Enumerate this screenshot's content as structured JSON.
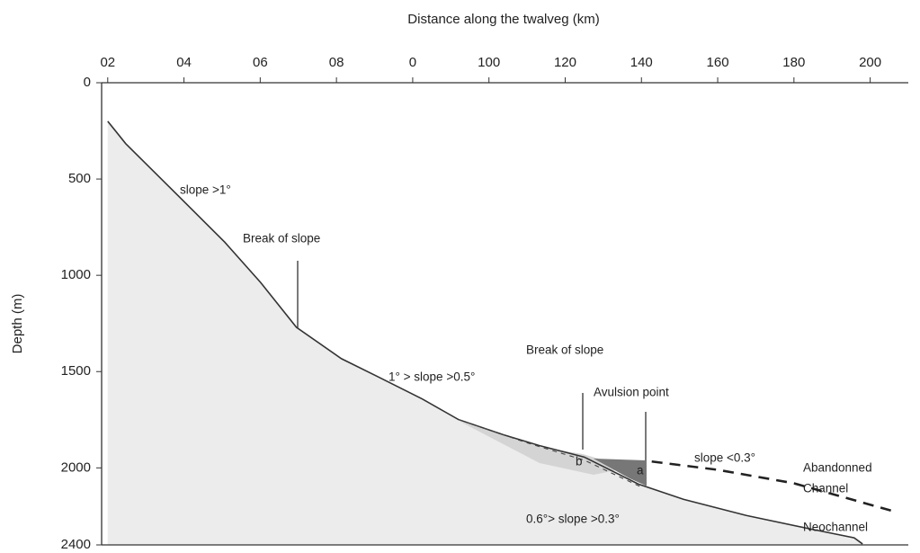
{
  "chart_data": {
    "type": "line",
    "title": "Distance along the twalveg (km)",
    "y_label": "Depth (m)",
    "xlim": [
      -1.6,
      210
    ],
    "ylim": [
      0,
      2400
    ],
    "y_inverted": true,
    "x_axis_position": "top",
    "xticks": [
      {
        "value": 0,
        "label": "02"
      },
      {
        "value": 20,
        "label": "04"
      },
      {
        "value": 40,
        "label": "06"
      },
      {
        "value": 60,
        "label": "08"
      },
      {
        "value": 80,
        "label": "0"
      },
      100,
      120,
      140,
      160,
      180,
      200
    ],
    "yticks": [
      0,
      500,
      1000,
      1500,
      2000,
      2400
    ],
    "series": [
      {
        "x": [
          0,
          4.7,
          18.9,
          30.7,
          40.1,
          49.5,
          61.3,
          70.8,
          82.5,
          92,
          103.8,
          113.2,
          125,
          139.2,
          151,
          167.5,
          184,
          195.8,
          198
        ],
        "values": [
          200,
          316,
          595,
          828,
          1037,
          1270,
          1433,
          1526,
          1642,
          1749,
          1828,
          1884,
          1944,
          2084,
          2163,
          2247,
          2316,
          2363,
          2395
        ],
        "color": "#333333",
        "style": "solid",
        "fill": "#ececec"
      },
      {
        "x": [
          92,
          110,
          125,
          140
        ],
        "values": [
          1749,
          1870,
          1960,
          2100
        ],
        "color": "#444444",
        "style": "dashed-fine"
      },
      {
        "x": [
          142.7,
          160,
          180,
          207
        ],
        "values": [
          1967,
          2010,
          2080,
          2230
        ],
        "color": "#222222",
        "style": "dashed-bold"
      }
    ],
    "annotations": [
      "slope >1°",
      "Break of slope",
      "1° > slope >0.5°",
      "Break of slope",
      "Avulsion point",
      "slope <0.3°",
      "Abandonned",
      "Channel",
      "0.6°> slope >0.3°",
      "Neochannel",
      "a",
      "b"
    ]
  }
}
